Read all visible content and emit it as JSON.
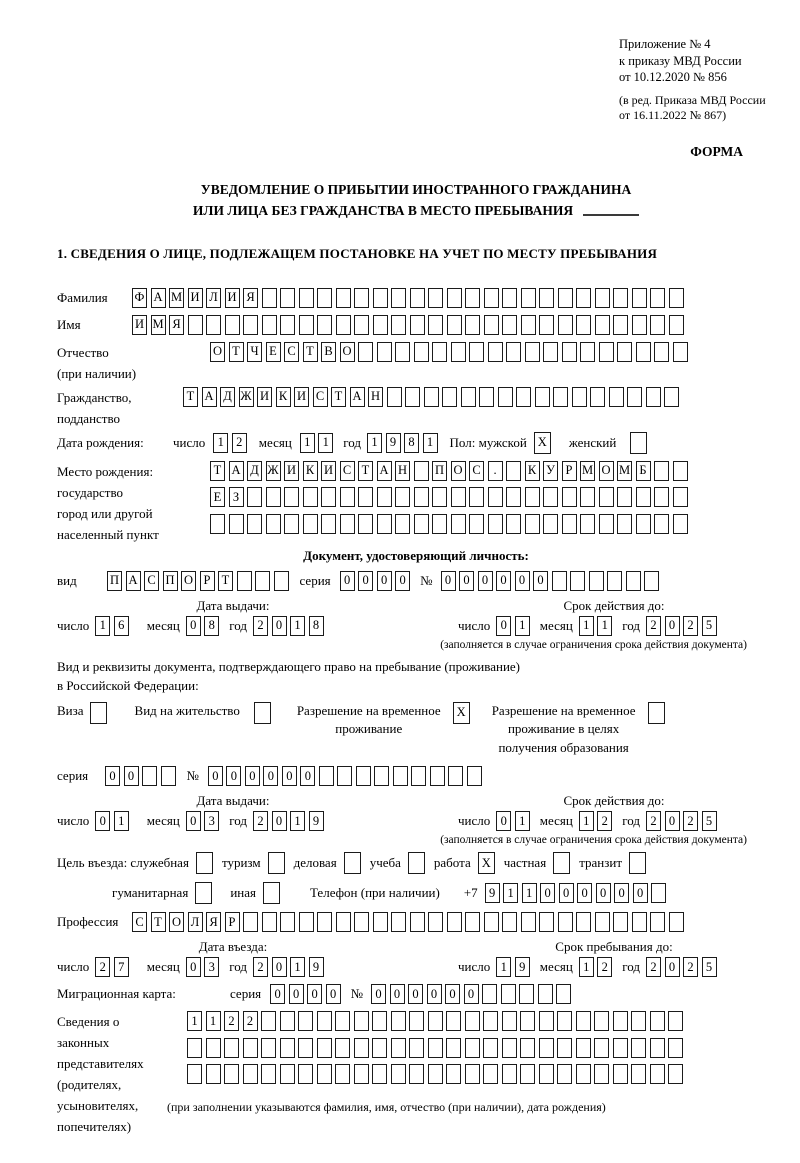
{
  "header": {
    "appendix": [
      "Приложение № 4",
      "к приказу МВД России",
      "от 10.12.2020 № 856"
    ],
    "amendment": [
      "(в ред. Приказа МВД России",
      "от 16.11.2022 № 867)"
    ],
    "forma": "ФОРМА"
  },
  "title": {
    "line1": "УВЕДОМЛЕНИЕ О ПРИБЫТИИ ИНОСТРАННОГО ГРАЖДАНИНА",
    "line2": "ИЛИ ЛИЦА БЕЗ ГРАЖДАНСТВА В МЕСТО ПРЕБЫВАНИЯ"
  },
  "section1_title": "1. СВЕДЕНИЯ О ЛИЦЕ, ПОДЛЕЖАЩЕМ ПОСТАНОВКЕ НА УЧЕТ ПО МЕСТУ ПРЕБЫВАНИЯ",
  "labels": {
    "surname": "Фамилия",
    "name": "Имя",
    "patronymic": "Отчество",
    "patronymic_note": "(при наличии)",
    "citizenship1": "Гражданство,",
    "citizenship2": "подданство",
    "birth_date": "Дата рождения:",
    "day": "число",
    "month": "месяц",
    "year": "год",
    "sex_male": "Пол: мужской",
    "sex_female": "женский",
    "birth_place": "Место рождения:",
    "state": "государство",
    "city1": "город или другой",
    "city2": "населенный пункт",
    "identity_doc": "Документ, удостоверяющий личность:",
    "doc_type": "вид",
    "series": "серия",
    "number_sign": "№",
    "issue_date": "Дата выдачи:",
    "valid_until": "Срок действия до:",
    "validity_note": "(заполняется в случае ограничения срока действия документа)",
    "residence_doc1": "Вид и реквизиты документа, подтверждающего право на пребывание (проживание)",
    "residence_doc2": "в Российской Федерации:",
    "visa": "Виза",
    "residence_permit": "Вид на жительство",
    "temp_permit": [
      "Разрешение на временное",
      "проживание"
    ],
    "temp_permit_edu": [
      "Разрешение на временное",
      "проживание в целях",
      "получения образования"
    ],
    "purpose_official": "Цель въезда: служебная",
    "tourism": "туризм",
    "business": "деловая",
    "study": "учеба",
    "work": "работа",
    "private": "частная",
    "transit": "транзит",
    "humanitarian": "гуманитарная",
    "other": "иная",
    "phone": "Телефон (при наличии)",
    "phone_prefix": "+7",
    "profession": "Профессия",
    "entry_date": "Дата въезда:",
    "stay_until": "Срок пребывания до:",
    "migration_card": "Миграционная карта:",
    "legal_rep": [
      "Сведения о",
      "законных",
      "представителях",
      "(родителях,",
      "усыновителях,",
      "попечителях)"
    ],
    "legal_rep_note": "(при заполнении указываются фамилия, имя, отчество (при наличии), дата рождения)"
  },
  "fields": {
    "surname": {
      "value": "ФАМИЛИЯ",
      "len": 30
    },
    "name": {
      "value": "ИМЯ",
      "len": 30
    },
    "patronymic": {
      "value": "ОТЧЕСТВО",
      "len": 26
    },
    "citizenship": {
      "value": "ТАДЖИКИСТАН",
      "len": 27
    },
    "birth_day": {
      "value": "12",
      "len": 2
    },
    "birth_month": {
      "value": "11",
      "len": 2
    },
    "birth_year": {
      "value": "1981",
      "len": 4
    },
    "sex_male": {
      "value": "X",
      "len": 1
    },
    "sex_female": {
      "value": "",
      "len": 1
    },
    "birth_place_1": {
      "value": "ТАДЖИКИСТАН ПОС. КУРМОМБ",
      "len": 26
    },
    "birth_place_2": {
      "value": "ЕЗ",
      "len": 26
    },
    "birth_place_3": {
      "value": "",
      "len": 26
    },
    "doc_type": {
      "value": "ПАСПОРТ",
      "len": 10
    },
    "doc_series": {
      "value": "0000",
      "len": 4
    },
    "doc_number": {
      "value": "000000",
      "len": 12
    },
    "doc_issue_day": {
      "value": "16",
      "len": 2
    },
    "doc_issue_month": {
      "value": "08",
      "len": 2
    },
    "doc_issue_year": {
      "value": "2018",
      "len": 4
    },
    "doc_valid_day": {
      "value": "01",
      "len": 2
    },
    "doc_valid_month": {
      "value": "11",
      "len": 2
    },
    "doc_valid_year": {
      "value": "2025",
      "len": 4
    },
    "visa": {
      "value": "",
      "len": 1
    },
    "residence_permit": {
      "value": "",
      "len": 1
    },
    "temp_permit": {
      "value": "X",
      "len": 1
    },
    "temp_permit_edu": {
      "value": "",
      "len": 1
    },
    "res_series": {
      "value": "00",
      "len": 4
    },
    "res_number": {
      "value": "000000",
      "len": 15
    },
    "res_issue_day": {
      "value": "01",
      "len": 2
    },
    "res_issue_month": {
      "value": "03",
      "len": 2
    },
    "res_issue_year": {
      "value": "2019",
      "len": 4
    },
    "res_valid_day": {
      "value": "01",
      "len": 2
    },
    "res_valid_month": {
      "value": "12",
      "len": 2
    },
    "res_valid_year": {
      "value": "2025",
      "len": 4
    },
    "purpose_official": {
      "value": "",
      "len": 1
    },
    "tourism": {
      "value": "",
      "len": 1
    },
    "business": {
      "value": "",
      "len": 1
    },
    "study": {
      "value": "",
      "len": 1
    },
    "work": {
      "value": "X",
      "len": 1
    },
    "private": {
      "value": "",
      "len": 1
    },
    "transit": {
      "value": "",
      "len": 1
    },
    "humanitarian": {
      "value": "",
      "len": 1
    },
    "other": {
      "value": "",
      "len": 1
    },
    "phone": {
      "value": "911000000",
      "len": 10
    },
    "profession": {
      "value": "СТОЛЯР",
      "len": 30
    },
    "entry_day": {
      "value": "27",
      "len": 2
    },
    "entry_month": {
      "value": "03",
      "len": 2
    },
    "entry_year": {
      "value": "2019",
      "len": 4
    },
    "stay_day": {
      "value": "19",
      "len": 2
    },
    "stay_month": {
      "value": "12",
      "len": 2
    },
    "stay_year": {
      "value": "2025",
      "len": 4
    },
    "mig_series": {
      "value": "0000",
      "len": 4
    },
    "mig_number": {
      "value": "000000",
      "len": 11
    },
    "rep_1": {
      "value": "1122",
      "len": 27
    },
    "rep_2": {
      "value": "",
      "len": 27
    },
    "rep_3": {
      "value": "",
      "len": 27
    }
  }
}
